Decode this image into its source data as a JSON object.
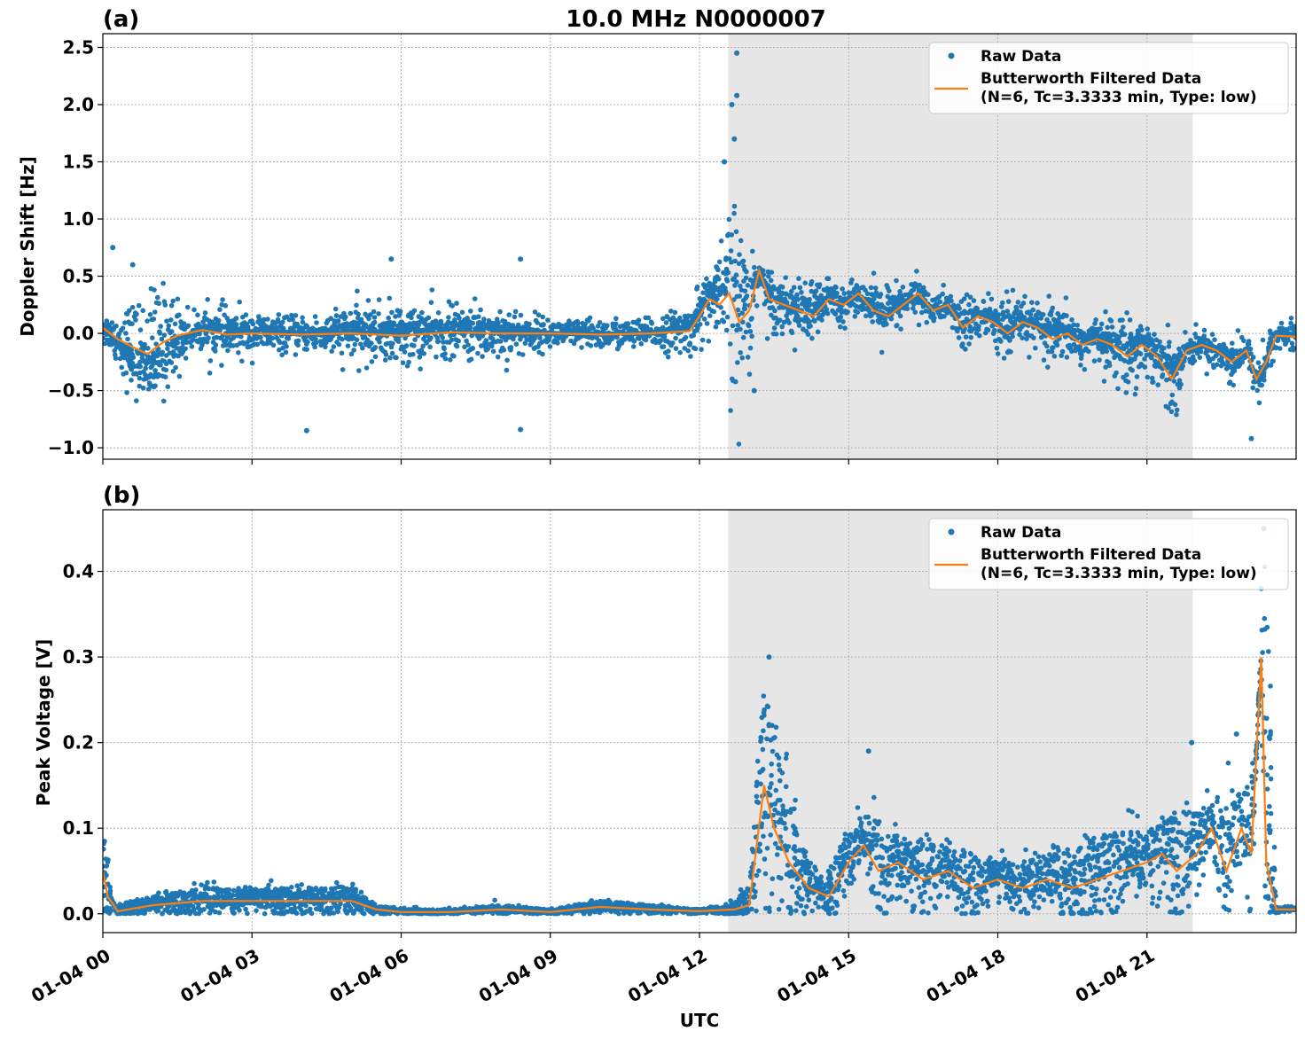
{
  "figure": {
    "title": "10.0 MHz N0000007",
    "xlabel": "UTC"
  },
  "colors": {
    "raw": "#1f77b4",
    "filtered": "#ff7f0e",
    "shade": "#e6e6e6",
    "grid": "#b0b0b0"
  },
  "legend": {
    "raw_label": "Raw Data",
    "filt_line1": "Butterworth Filtered Data",
    "filt_line2": "(N=6, Tc=3.3333 min, Type: low)"
  },
  "chart_data": [
    {
      "type": "scatter",
      "panel_label": "(a)",
      "ylabel": "Doppler Shift [Hz]",
      "xlim_hours": [
        0,
        24
      ],
      "ylim": [
        -1.1,
        2.62
      ],
      "yticks": [
        -1.0,
        -0.5,
        0.0,
        0.5,
        1.0,
        1.5,
        2.0,
        2.5
      ],
      "ytick_labels": [
        "−1.0",
        "−0.5",
        "0.0",
        "0.5",
        "1.0",
        "1.5",
        "2.0",
        "2.5"
      ],
      "shaded_span_hours": [
        12.58,
        21.92
      ],
      "legend_position": "top-right",
      "grid": true,
      "series": [
        {
          "name": "Raw Data",
          "kind": "scatter",
          "x_hours": [
            0,
            0.5,
            1,
            1.5,
            2,
            3,
            4,
            5,
            6,
            7,
            8,
            9,
            10,
            11,
            11.8,
            12.2,
            12.5,
            12.7,
            12.9,
            13.3,
            14,
            14.6,
            15,
            16,
            17,
            18,
            19,
            20,
            21,
            21.5,
            22,
            22.5,
            23,
            23.3,
            23.5,
            24
          ],
          "y": [
            0.1,
            -0.3,
            -0.5,
            -0.2,
            0.1,
            0.05,
            0.0,
            0.1,
            0.1,
            0.1,
            0.1,
            0.0,
            0.0,
            0.0,
            0.1,
            0.45,
            0.6,
            1.0,
            0.6,
            0.45,
            0.3,
            0.35,
            0.3,
            0.3,
            0.2,
            0.2,
            0.1,
            0.0,
            0.0,
            -0.2,
            -0.1,
            -0.1,
            -0.2,
            -0.5,
            0.0,
            0.0
          ],
          "extremes": [
            [
              12.75,
              2.45
            ],
            [
              12.65,
              2.0
            ],
            [
              12.75,
              2.08
            ],
            [
              12.7,
              1.7
            ],
            [
              12.5,
              1.5
            ],
            [
              4.1,
              -0.85
            ],
            [
              8.4,
              -0.84
            ],
            [
              0.6,
              0.6
            ],
            [
              5.8,
              0.65
            ],
            [
              8.4,
              0.65
            ],
            [
              23.1,
              -0.92
            ],
            [
              13.1,
              -0.5
            ],
            [
              0.2,
              0.75
            ]
          ]
        },
        {
          "name": "Butterworth Filtered Data (N=6, Tc=3.3333 min, Type: low)",
          "kind": "line",
          "x_hours": [
            0,
            0.3,
            0.6,
            0.9,
            1.2,
            1.5,
            2.0,
            2.5,
            3,
            4,
            5,
            6,
            7,
            8,
            9,
            10,
            11,
            11.8,
            12.0,
            12.2,
            12.4,
            12.6,
            12.8,
            13.0,
            13.2,
            13.4,
            13.7,
            14,
            14.3,
            14.6,
            14.9,
            15.2,
            15.5,
            15.8,
            16.1,
            16.4,
            16.7,
            17,
            17.3,
            17.6,
            17.9,
            18.2,
            18.5,
            18.8,
            19.1,
            19.4,
            19.7,
            20,
            20.3,
            20.6,
            20.9,
            21.2,
            21.5,
            21.8,
            22.1,
            22.4,
            22.7,
            23.0,
            23.2,
            23.4,
            23.6,
            24
          ],
          "y": [
            0.05,
            -0.05,
            -0.12,
            -0.18,
            -0.08,
            -0.02,
            0.03,
            -0.01,
            0.0,
            -0.01,
            0.0,
            -0.02,
            0.01,
            0.0,
            0.0,
            -0.01,
            0.0,
            0.02,
            0.15,
            0.3,
            0.25,
            0.35,
            0.1,
            0.2,
            0.55,
            0.3,
            0.25,
            0.2,
            0.15,
            0.3,
            0.25,
            0.35,
            0.2,
            0.15,
            0.25,
            0.35,
            0.2,
            0.25,
            0.05,
            0.15,
            0.1,
            0.0,
            0.1,
            0.05,
            -0.05,
            0.0,
            -0.1,
            -0.05,
            -0.1,
            -0.2,
            -0.1,
            -0.2,
            -0.4,
            -0.15,
            -0.1,
            -0.15,
            -0.25,
            -0.15,
            -0.4,
            -0.25,
            -0.02,
            -0.03
          ]
        }
      ]
    },
    {
      "type": "scatter",
      "panel_label": "(b)",
      "ylabel": "Peak Voltage [V]",
      "xlim_hours": [
        0,
        24
      ],
      "ylim": [
        -0.022,
        0.472
      ],
      "yticks": [
        0.0,
        0.1,
        0.2,
        0.3,
        0.4
      ],
      "ytick_labels": [
        "0.0",
        "0.1",
        "0.2",
        "0.3",
        "0.4"
      ],
      "shaded_span_hours": [
        12.58,
        21.92
      ],
      "legend_position": "top-right",
      "grid": true,
      "series": [
        {
          "name": "Raw Data",
          "kind": "scatter",
          "x_hours": [
            0,
            0.1,
            0.2,
            1,
            2,
            3,
            4,
            5,
            5.5,
            6,
            7,
            8,
            9,
            10,
            11,
            12,
            12.5,
            13,
            13.3,
            13.6,
            14,
            14.5,
            15,
            15.5,
            16,
            17,
            18,
            19,
            20,
            21,
            21.5,
            22,
            22.5,
            23,
            23.2,
            23.4,
            23.6,
            24
          ],
          "y": [
            0.1,
            0.06,
            0.01,
            0.02,
            0.03,
            0.03,
            0.03,
            0.03,
            0.01,
            0.005,
            0.005,
            0.01,
            0.005,
            0.015,
            0.01,
            0.005,
            0.01,
            0.03,
            0.28,
            0.2,
            0.08,
            0.04,
            0.1,
            0.12,
            0.09,
            0.08,
            0.06,
            0.07,
            0.09,
            0.1,
            0.12,
            0.12,
            0.14,
            0.15,
            0.2,
            0.45,
            0.005,
            0.005
          ],
          "extremes": [
            [
              13.4,
              0.3
            ],
            [
              15.4,
              0.19
            ],
            [
              21.9,
              0.2
            ],
            [
              22.8,
              0.21
            ],
            [
              23.35,
              0.45
            ],
            [
              23.3,
              0.38
            ]
          ]
        },
        {
          "name": "Butterworth Filtered Data (N=6, Tc=3.3333 min, Type: low)",
          "kind": "line",
          "x_hours": [
            0,
            0.1,
            0.3,
            1,
            2,
            3,
            4,
            5,
            5.5,
            6,
            7,
            8,
            9,
            10,
            11,
            12,
            12.7,
            13.0,
            13.3,
            13.5,
            13.8,
            14.2,
            14.6,
            15,
            15.3,
            15.6,
            16,
            16.5,
            17,
            17.5,
            18,
            18.5,
            19,
            19.5,
            20,
            20.5,
            21,
            21.3,
            21.6,
            22,
            22.3,
            22.6,
            22.9,
            23.1,
            23.3,
            23.4,
            23.6,
            24
          ],
          "y": [
            0.05,
            0.02,
            0.003,
            0.01,
            0.015,
            0.015,
            0.015,
            0.015,
            0.005,
            0.002,
            0.002,
            0.005,
            0.002,
            0.008,
            0.005,
            0.003,
            0.005,
            0.01,
            0.15,
            0.1,
            0.06,
            0.03,
            0.02,
            0.06,
            0.08,
            0.05,
            0.06,
            0.04,
            0.05,
            0.03,
            0.04,
            0.03,
            0.04,
            0.03,
            0.04,
            0.05,
            0.06,
            0.07,
            0.05,
            0.07,
            0.1,
            0.05,
            0.1,
            0.07,
            0.3,
            0.06,
            0.005,
            0.005
          ]
        }
      ]
    }
  ],
  "x_axis": {
    "tick_hours": [
      0,
      3,
      6,
      9,
      12,
      15,
      18,
      21
    ],
    "tick_labels": [
      "01-04 00",
      "01-04 03",
      "01-04 06",
      "01-04 09",
      "01-04 12",
      "01-04 15",
      "01-04 18",
      "01-04 21"
    ]
  }
}
